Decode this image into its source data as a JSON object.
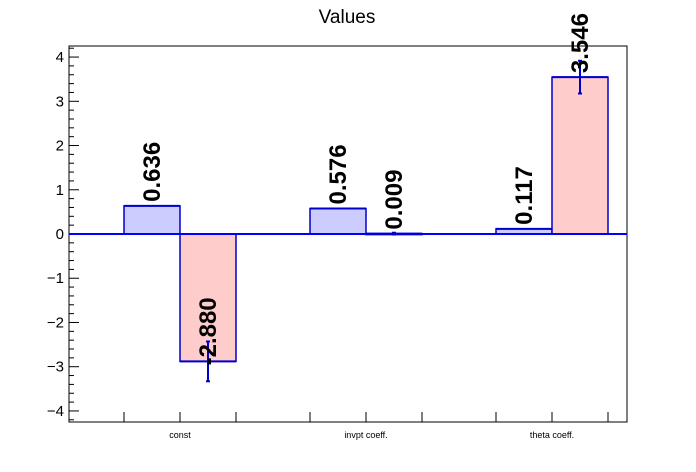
{
  "chart_data": {
    "type": "bar",
    "title": "Values",
    "xlabel": "",
    "ylabel": "",
    "categories": [
      "const",
      "invpt coeff.",
      "theta coeff."
    ],
    "ylim": [
      -4.25,
      4.25
    ],
    "yticks": [
      -4,
      -3,
      -2,
      -1,
      0,
      1,
      2,
      3,
      4
    ],
    "ytick_labels": [
      "−4",
      "−3",
      "−2",
      "−1",
      "0",
      "1",
      "2",
      "3",
      "4"
    ],
    "grid": false,
    "series": [
      {
        "values": [
          0.636,
          0.576,
          0.117
        ],
        "value_labels": [
          "0.636",
          "0.576",
          "0.117"
        ],
        "errors": [
          0,
          0,
          0
        ],
        "fill": "#ccccff",
        "stroke": "#0000cc"
      },
      {
        "values": [
          -2.88,
          0.009,
          3.546
        ],
        "value_labels": [
          "-2.880",
          "0.009",
          "3.546"
        ],
        "errors": [
          0.45,
          0.02,
          0.37
        ],
        "fill": "#ffcccc",
        "stroke": "#0000cc"
      }
    ],
    "error_color": "#0000cc",
    "zero_line_color": "#0000ff"
  }
}
